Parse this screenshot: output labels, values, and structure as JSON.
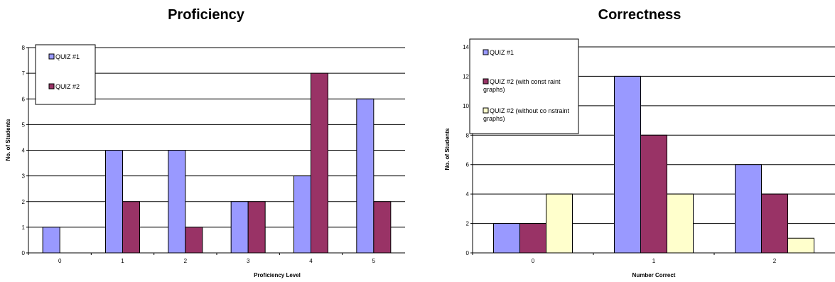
{
  "chart_data": [
    {
      "type": "bar",
      "title": "Proficiency",
      "xlabel": "Proficiency Level",
      "ylabel": "No. of Students",
      "categories": [
        "0",
        "1",
        "2",
        "3",
        "4",
        "5"
      ],
      "ylim": [
        0,
        8
      ],
      "yticks": [
        "0",
        "1",
        "2",
        "3",
        "4",
        "5",
        "6",
        "7",
        "8"
      ],
      "grid": true,
      "legend_position": "top-left",
      "series": [
        {
          "name": "QUIZ #1",
          "color": "#9999ff",
          "values": [
            1,
            4,
            4,
            2,
            3,
            6
          ]
        },
        {
          "name": "QUIZ #2",
          "color": "#993366",
          "values": [
            0,
            2,
            1,
            2,
            7,
            2
          ]
        }
      ]
    },
    {
      "type": "bar",
      "title": "Correctness",
      "xlabel": "Number Correct",
      "ylabel": "No. of Students",
      "categories": [
        "0",
        "1",
        "2"
      ],
      "ylim": [
        0,
        14
      ],
      "yticks": [
        "0",
        "2",
        "4",
        "6",
        "8",
        "10",
        "12",
        "14"
      ],
      "grid": true,
      "legend_position": "top-left",
      "series": [
        {
          "name": "QUIZ #1",
          "color": "#9999ff",
          "values": [
            2,
            12,
            6
          ]
        },
        {
          "name": "QUIZ #2 (with const raint graphs)",
          "color": "#993366",
          "values": [
            2,
            8,
            4
          ]
        },
        {
          "name": "QUIZ #2 (without co nstraint graphs)",
          "color": "#ffffcc",
          "values": [
            4,
            4,
            1
          ]
        }
      ]
    }
  ]
}
